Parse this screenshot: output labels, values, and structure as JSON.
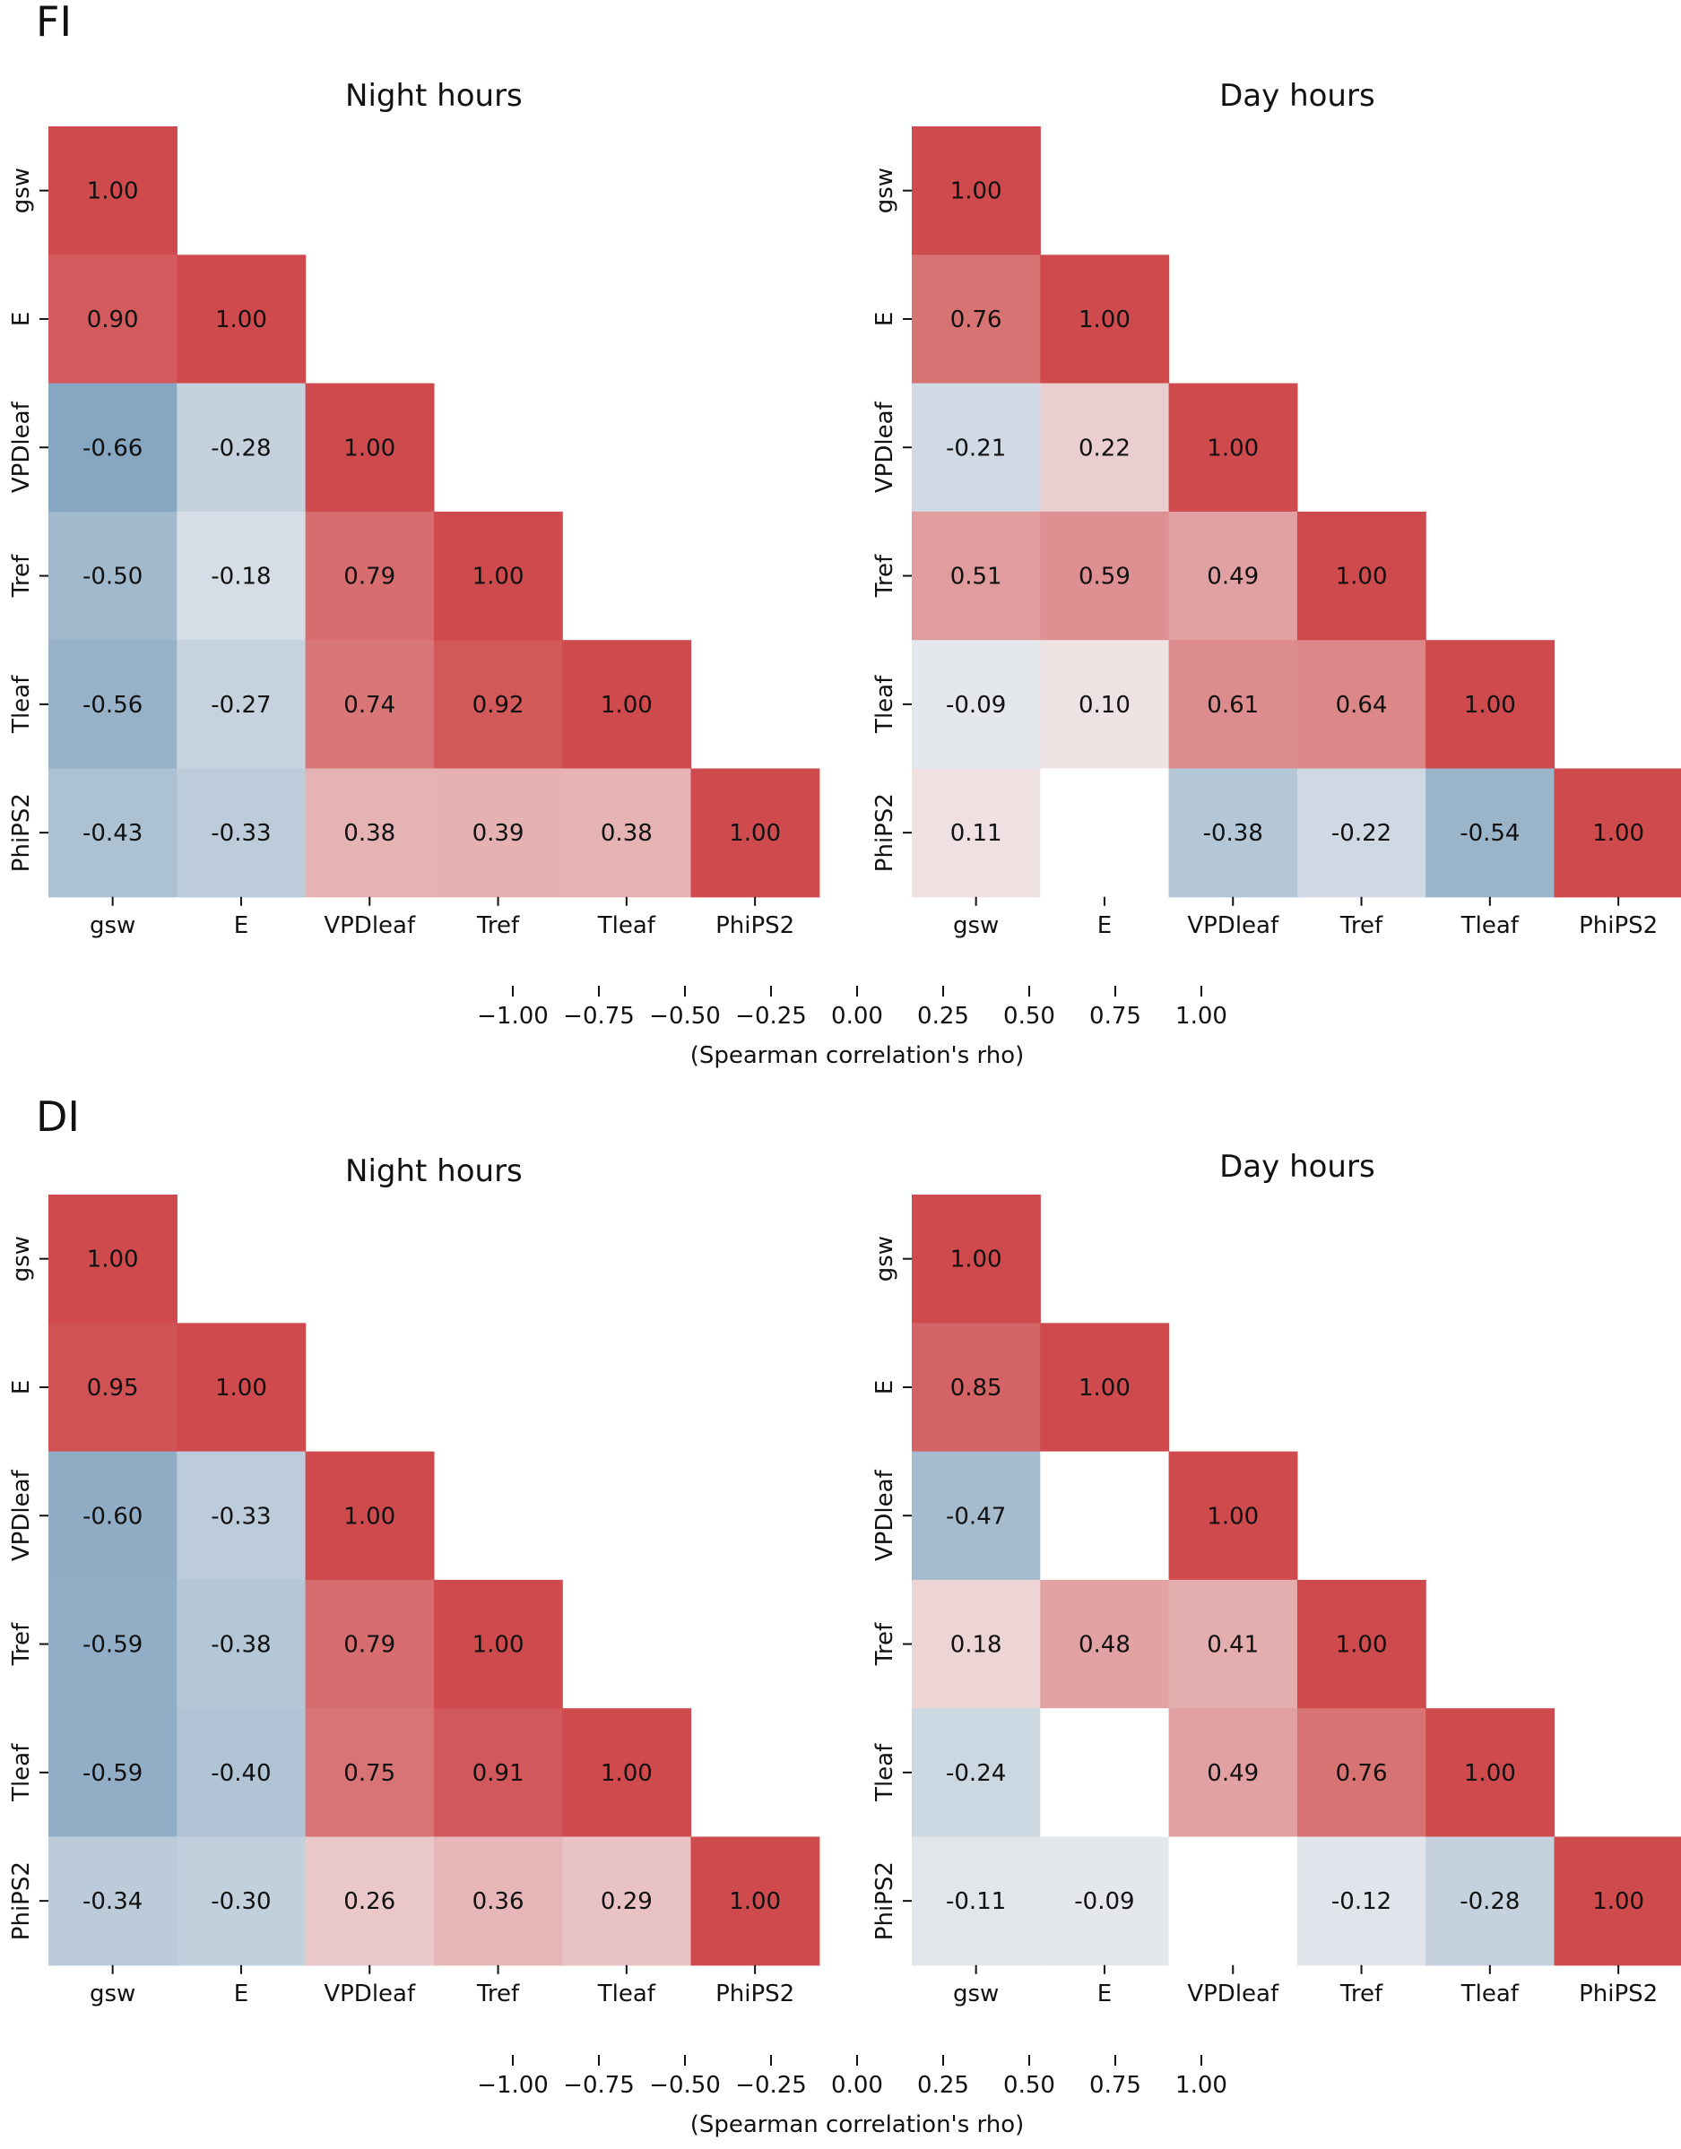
{
  "chart_data": [
    {
      "type": "heatmap",
      "group": "FI",
      "title": "Night hours",
      "variables": [
        "gsw",
        "E",
        "VPDleaf",
        "Tref",
        "Tleaf",
        "PhiPS2"
      ],
      "matrix_lower": [
        [
          1.0
        ],
        [
          0.9,
          1.0
        ],
        [
          -0.66,
          -0.28,
          1.0
        ],
        [
          -0.5,
          -0.18,
          0.79,
          1.0
        ],
        [
          -0.56,
          -0.27,
          0.74,
          0.92,
          1.0
        ],
        [
          -0.43,
          -0.33,
          0.38,
          0.39,
          0.38,
          1.0
        ]
      ],
      "vmin": -1.0,
      "vmax": 1.0
    },
    {
      "type": "heatmap",
      "group": "FI",
      "title": "Day hours",
      "variables": [
        "gsw",
        "E",
        "VPDleaf",
        "Tref",
        "Tleaf",
        "PhiPS2"
      ],
      "matrix_lower": [
        [
          1.0
        ],
        [
          0.76,
          1.0
        ],
        [
          -0.21,
          0.22,
          1.0
        ],
        [
          0.51,
          0.59,
          0.49,
          1.0
        ],
        [
          -0.09,
          0.1,
          0.61,
          0.64,
          1.0
        ],
        [
          0.11,
          null,
          -0.38,
          -0.22,
          -0.54,
          1.0
        ]
      ],
      "vmin": -1.0,
      "vmax": 1.0
    },
    {
      "type": "heatmap",
      "group": "DI",
      "title": "Night hours",
      "variables": [
        "gsw",
        "E",
        "VPDleaf",
        "Tref",
        "Tleaf",
        "PhiPS2"
      ],
      "matrix_lower": [
        [
          1.0
        ],
        [
          0.95,
          1.0
        ],
        [
          -0.6,
          -0.33,
          1.0
        ],
        [
          -0.59,
          -0.38,
          0.79,
          1.0
        ],
        [
          -0.59,
          -0.4,
          0.75,
          0.91,
          1.0
        ],
        [
          -0.34,
          -0.3,
          0.26,
          0.36,
          0.29,
          1.0
        ]
      ],
      "vmin": -1.0,
      "vmax": 1.0
    },
    {
      "type": "heatmap",
      "group": "DI",
      "title": "Day hours",
      "variables": [
        "gsw",
        "E",
        "VPDleaf",
        "Tref",
        "Tleaf",
        "PhiPS2"
      ],
      "matrix_lower": [
        [
          1.0
        ],
        [
          0.85,
          1.0
        ],
        [
          -0.47,
          null,
          1.0
        ],
        [
          0.18,
          0.48,
          0.41,
          1.0
        ],
        [
          -0.24,
          null,
          0.49,
          0.76,
          1.0
        ],
        [
          -0.11,
          -0.09,
          null,
          -0.12,
          -0.28,
          1.0
        ]
      ],
      "vmin": -1.0,
      "vmax": 1.0
    }
  ],
  "groups": [
    "FI",
    "DI"
  ],
  "colorbar": {
    "ticks": [
      -1.0,
      -0.75,
      -0.5,
      -0.25,
      0.0,
      0.25,
      0.5,
      0.75,
      1.0
    ],
    "tick_labels": [
      "−1.00",
      "−0.75",
      "−0.50",
      "−0.25",
      "0.00",
      "0.25",
      "0.50",
      "0.75",
      "1.00"
    ],
    "label": "(Spearman correlation's rho)"
  },
  "colors": {
    "negative": "#4e7ea6",
    "center": "#f3f3f4",
    "positive": "#cf4a4c",
    "masked": "#ffffff"
  }
}
